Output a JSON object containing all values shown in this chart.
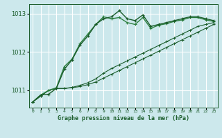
{
  "title": "Graphe pression niveau de la mer (hPa)",
  "bg_color": "#cce8ec",
  "grid_color": "#ffffff",
  "line_color_dark": "#1a5c2a",
  "line_color_med": "#2d8040",
  "x_labels": [
    "0",
    "1",
    "2",
    "3",
    "4",
    "5",
    "6",
    "7",
    "8",
    "9",
    "10",
    "11",
    "12",
    "13",
    "14",
    "15",
    "16",
    "17",
    "18",
    "19",
    "20",
    "21",
    "22",
    "23"
  ],
  "ylim": [
    1010.55,
    1013.25
  ],
  "yticks": [
    1011,
    1012,
    1013
  ],
  "series1": [
    1010.7,
    1010.88,
    1010.9,
    1011.05,
    1011.55,
    1011.8,
    1012.18,
    1012.42,
    1012.72,
    1012.87,
    1012.92,
    1013.08,
    1012.87,
    1012.82,
    1012.97,
    1012.67,
    1012.72,
    1012.77,
    1012.82,
    1012.87,
    1012.92,
    1012.92,
    1012.87,
    1012.82
  ],
  "series2": [
    1010.7,
    1010.88,
    1011.0,
    1011.07,
    1011.62,
    1011.82,
    1012.22,
    1012.47,
    1012.72,
    1012.92,
    1012.87,
    1012.9,
    1012.77,
    1012.72,
    1012.9,
    1012.62,
    1012.7,
    1012.74,
    1012.8,
    1012.84,
    1012.9,
    1012.9,
    1012.84,
    1012.8
  ],
  "series3": [
    1010.7,
    1010.85,
    1011.0,
    1011.05,
    1011.05,
    1011.07,
    1011.1,
    1011.15,
    1011.22,
    1011.32,
    1011.42,
    1011.52,
    1011.62,
    1011.72,
    1011.82,
    1011.92,
    1012.02,
    1012.12,
    1012.22,
    1012.32,
    1012.42,
    1012.52,
    1012.62,
    1012.72
  ],
  "series4": [
    1010.7,
    1010.85,
    1011.0,
    1011.05,
    1011.05,
    1011.08,
    1011.13,
    1011.2,
    1011.3,
    1011.45,
    1011.57,
    1011.67,
    1011.77,
    1011.87,
    1011.97,
    1012.07,
    1012.17,
    1012.27,
    1012.37,
    1012.47,
    1012.57,
    1012.67,
    1012.72,
    1012.77
  ]
}
